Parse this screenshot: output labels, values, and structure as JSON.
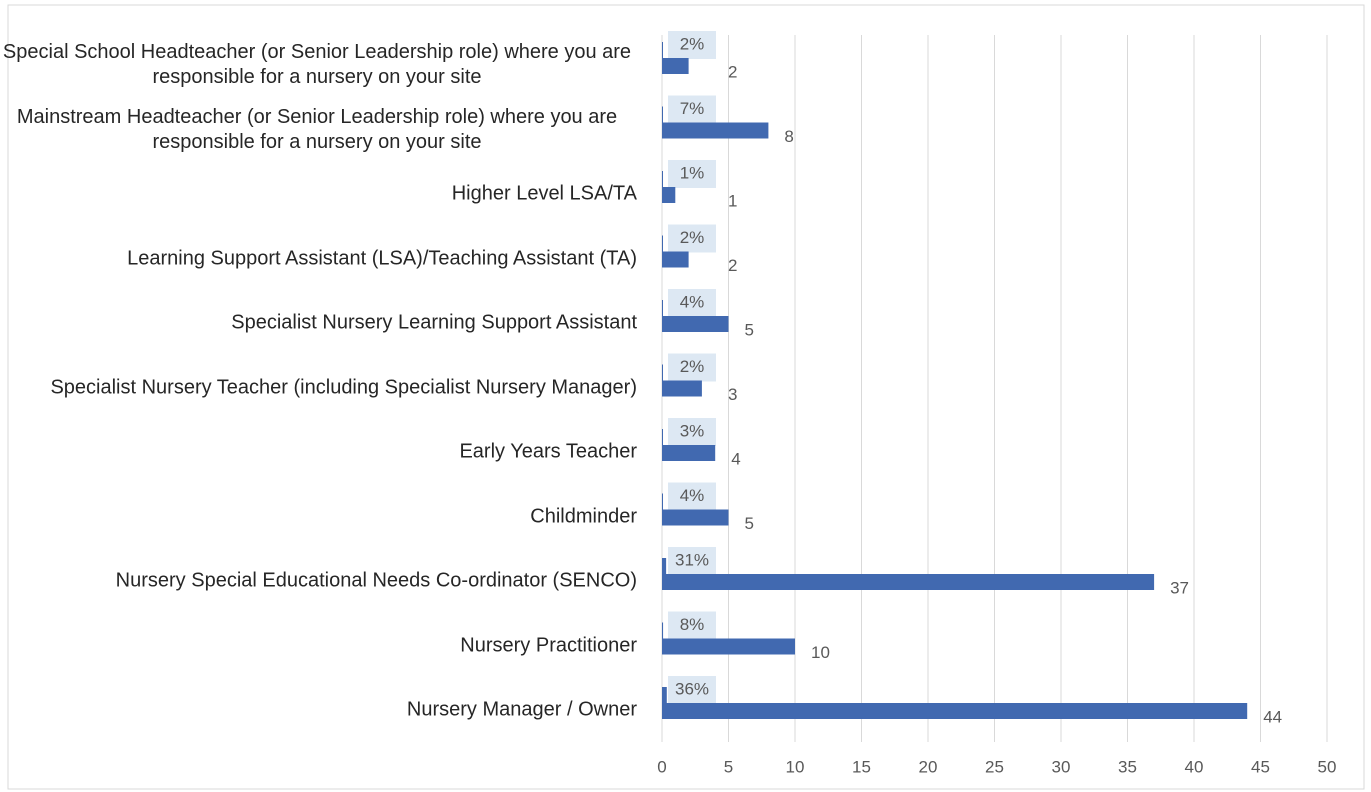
{
  "chart_data": {
    "type": "bar",
    "orientation": "horizontal",
    "categories": [
      "Special School Headteacher (or Senior Leadership role) where you are responsible for a nursery on your site",
      "Mainstream Headteacher (or Senior Leadership role) where you are responsible for a nursery on your site",
      "Higher Level LSA/TA",
      "Learning Support Assistant (LSA)/Teaching Assistant (TA)",
      "Specialist Nursery Learning Support Assistant",
      "Specialist Nursery Teacher (including Specialist Nursery Manager)",
      "Early Years Teacher",
      "Childminder",
      "Nursery Special Educational Needs Co-ordinator (SENCO)",
      "Nursery Practitioner",
      "Nursery Manager / Owner"
    ],
    "series": [
      {
        "color": "#4169b0",
        "values": [
          0.02,
          0.07,
          0.01,
          0.02,
          0.04,
          0.02,
          0.03,
          0.04,
          0.31,
          0.08,
          0.36
        ],
        "value_labels": [
          "2%",
          "7%",
          "1%",
          "2%",
          "4%",
          "2%",
          "3%",
          "4%",
          "31%",
          "8%",
          "36%"
        ]
      },
      {
        "color": "#4169b0",
        "values": [
          2,
          8,
          1,
          2,
          5,
          3,
          4,
          5,
          37,
          10,
          44
        ]
      }
    ],
    "xlim": [
      0,
      50
    ],
    "xticks": [
      0,
      5,
      10,
      15,
      20,
      25,
      30,
      35,
      40,
      45,
      50
    ],
    "grid": true
  }
}
